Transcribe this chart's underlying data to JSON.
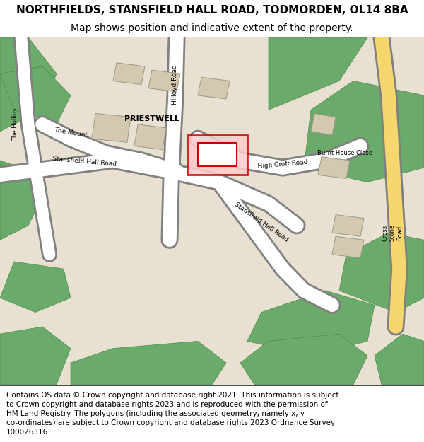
{
  "title_line1": "NORTHFIELDS, STANSFIELD HALL ROAD, TODMORDEN, OL14 8BA",
  "title_line2": "Map shows position and indicative extent of the property.",
  "copyright_text": "Contains OS data © Crown copyright and database right 2021. This information is subject\nto Crown copyright and database rights 2023 and is reproduced with the permission of\nHM Land Registry. The polygons (including the associated geometry, namely x, y\nco-ordinates) are subject to Crown copyright and database rights 2023 Ordnance Survey\n100026316.",
  "bg_color": "#f5f0e8",
  "road_color": "#ffffff",
  "road_yellow": "#f5d76e",
  "green_color": "#6aaa6a",
  "dark_green": "#4a8a4a",
  "building_color": "#d4c8b0",
  "highlight_color": "#cc0000",
  "highlight_fill": "#ffcccc",
  "map_bg": "#e8e0d0",
  "title_fontsize": 11,
  "subtitle_fontsize": 10,
  "copyright_fontsize": 7.5
}
